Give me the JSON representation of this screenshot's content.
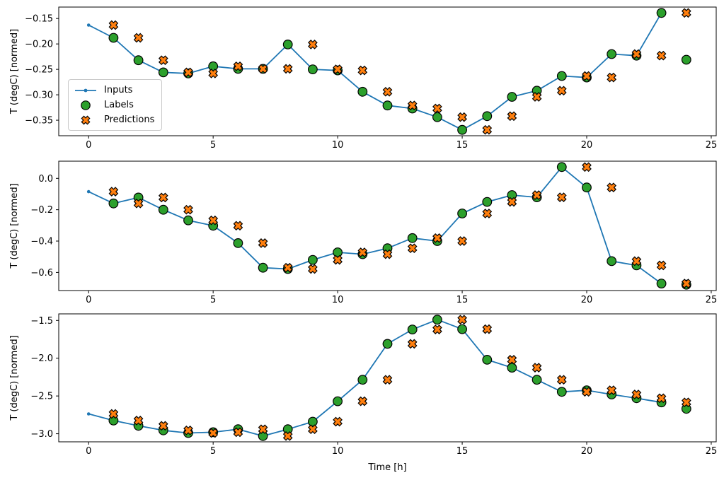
{
  "figure": {
    "background": "#ffffff",
    "legend": {
      "items": [
        {
          "label": "Inputs",
          "marker": "line-dot",
          "color": "#1f77b4"
        },
        {
          "label": "Labels",
          "marker": "circle",
          "color": "#2ca02c",
          "edge_color": "#000000"
        },
        {
          "label": "Predictions",
          "marker": "X",
          "color": "#ff7f0e",
          "edge_color": "#000000"
        }
      ]
    }
  },
  "chart_data": [
    {
      "type": "line",
      "name": "subplot-1",
      "title": "",
      "xlabel": "",
      "ylabel": "T (degC) [normed]",
      "grid": false,
      "legend_position": "upper-left-of-first-subplot",
      "xlim": [
        -1.2,
        25.2
      ],
      "ylim": [
        -0.3805,
        -0.1275
      ],
      "xticks": {
        "values": [
          0,
          5,
          10,
          15,
          20,
          25
        ],
        "labels": [
          "0",
          "5",
          "10",
          "15",
          "20",
          "25"
        ]
      },
      "yticks": {
        "values": [
          -0.15,
          -0.2,
          -0.25,
          -0.3,
          -0.35
        ],
        "labels": [
          "−0.15",
          "−0.20",
          "−0.25",
          "−0.30",
          "−0.35"
        ]
      },
      "series": [
        {
          "name": "Inputs",
          "type": "line",
          "marker": "dot",
          "color": "#1f77b4",
          "x": [
            0,
            1,
            2,
            3,
            4,
            5,
            6,
            7,
            8,
            9,
            10,
            11,
            12,
            13,
            14,
            15,
            16,
            17,
            18,
            19,
            20,
            21,
            22,
            23
          ],
          "y": [
            -0.163,
            -0.188,
            -0.232,
            -0.256,
            -0.258,
            -0.244,
            -0.249,
            -0.249,
            -0.201,
            -0.25,
            -0.252,
            -0.294,
            -0.321,
            -0.327,
            -0.344,
            -0.369,
            -0.342,
            -0.304,
            -0.292,
            -0.263,
            -0.266,
            -0.22,
            -0.223,
            -0.139
          ]
        },
        {
          "name": "Labels",
          "type": "scatter",
          "marker": "circle",
          "color": "#2ca02c",
          "edge_color": "#000000",
          "x": [
            1,
            2,
            3,
            4,
            5,
            6,
            7,
            8,
            9,
            10,
            11,
            12,
            13,
            14,
            15,
            16,
            17,
            18,
            19,
            20,
            21,
            22,
            23,
            24
          ],
          "y": [
            -0.188,
            -0.232,
            -0.256,
            -0.258,
            -0.244,
            -0.249,
            -0.249,
            -0.201,
            -0.25,
            -0.252,
            -0.294,
            -0.321,
            -0.327,
            -0.344,
            -0.369,
            -0.342,
            -0.304,
            -0.292,
            -0.263,
            -0.266,
            -0.22,
            -0.223,
            -0.139,
            -0.231
          ]
        },
        {
          "name": "Predictions",
          "type": "scatter",
          "marker": "X",
          "color": "#ff7f0e",
          "edge_color": "#000000",
          "x": [
            1,
            2,
            3,
            4,
            5,
            6,
            7,
            8,
            9,
            10,
            11,
            12,
            13,
            14,
            15,
            16,
            17,
            18,
            19,
            20,
            21,
            22,
            23,
            24
          ],
          "y": [
            -0.163,
            -0.188,
            -0.232,
            -0.256,
            -0.258,
            -0.244,
            -0.249,
            -0.249,
            -0.201,
            -0.25,
            -0.252,
            -0.294,
            -0.321,
            -0.327,
            -0.344,
            -0.369,
            -0.342,
            -0.304,
            -0.292,
            -0.263,
            -0.266,
            -0.22,
            -0.223,
            -0.139
          ]
        }
      ]
    },
    {
      "type": "line",
      "name": "subplot-2",
      "title": "",
      "xlabel": "",
      "ylabel": "T (degC) [normed]",
      "grid": false,
      "xlim": [
        -1.2,
        25.2
      ],
      "ylim": [
        -0.7155,
        0.1095
      ],
      "xticks": {
        "values": [
          0,
          5,
          10,
          15,
          20,
          25
        ],
        "labels": [
          "0",
          "5",
          "10",
          "15",
          "20",
          "25"
        ]
      },
      "yticks": {
        "values": [
          0.0,
          -0.2,
          -0.4,
          -0.6
        ],
        "labels": [
          "0.0",
          "−0.2",
          "−0.4",
          "−0.6"
        ]
      },
      "series": [
        {
          "name": "Inputs",
          "type": "line",
          "marker": "dot",
          "color": "#1f77b4",
          "x": [
            0,
            1,
            2,
            3,
            4,
            5,
            6,
            7,
            8,
            9,
            10,
            11,
            12,
            13,
            14,
            15,
            16,
            17,
            18,
            19,
            20,
            21,
            22,
            23
          ],
          "y": [
            -0.085,
            -0.16,
            -0.122,
            -0.2,
            -0.268,
            -0.302,
            -0.413,
            -0.57,
            -0.578,
            -0.52,
            -0.472,
            -0.484,
            -0.446,
            -0.381,
            -0.4,
            -0.224,
            -0.15,
            -0.107,
            -0.121,
            0.072,
            -0.058,
            -0.528,
            -0.555,
            -0.671
          ]
        },
        {
          "name": "Labels",
          "type": "scatter",
          "marker": "circle",
          "color": "#2ca02c",
          "edge_color": "#000000",
          "x": [
            1,
            2,
            3,
            4,
            5,
            6,
            7,
            8,
            9,
            10,
            11,
            12,
            13,
            14,
            15,
            16,
            17,
            18,
            19,
            20,
            21,
            22,
            23,
            24
          ],
          "y": [
            -0.16,
            -0.122,
            -0.2,
            -0.268,
            -0.302,
            -0.413,
            -0.57,
            -0.578,
            -0.52,
            -0.472,
            -0.484,
            -0.446,
            -0.381,
            -0.4,
            -0.224,
            -0.15,
            -0.107,
            -0.121,
            0.072,
            -0.058,
            -0.528,
            -0.555,
            -0.671,
            -0.678
          ]
        },
        {
          "name": "Predictions",
          "type": "scatter",
          "marker": "X",
          "color": "#ff7f0e",
          "edge_color": "#000000",
          "x": [
            1,
            2,
            3,
            4,
            5,
            6,
            7,
            8,
            9,
            10,
            11,
            12,
            13,
            14,
            15,
            16,
            17,
            18,
            19,
            20,
            21,
            22,
            23,
            24
          ],
          "y": [
            -0.085,
            -0.16,
            -0.122,
            -0.2,
            -0.268,
            -0.302,
            -0.413,
            -0.57,
            -0.578,
            -0.52,
            -0.472,
            -0.484,
            -0.446,
            -0.381,
            -0.4,
            -0.224,
            -0.15,
            -0.107,
            -0.121,
            0.072,
            -0.058,
            -0.528,
            -0.555,
            -0.671
          ]
        }
      ]
    },
    {
      "type": "line",
      "name": "subplot-3",
      "title": "",
      "xlabel": "Time [h]",
      "ylabel": "T (degC) [normed]",
      "grid": false,
      "xlim": [
        -1.2,
        25.2
      ],
      "ylim": [
        -3.107,
        -1.413
      ],
      "xticks": {
        "values": [
          0,
          5,
          10,
          15,
          20,
          25
        ],
        "labels": [
          "0",
          "5",
          "10",
          "15",
          "20",
          "25"
        ]
      },
      "yticks": {
        "values": [
          -1.5,
          -2.0,
          -2.5,
          -3.0
        ],
        "labels": [
          "−1.5",
          "−2.0",
          "−2.5",
          "−3.0"
        ]
      },
      "series": [
        {
          "name": "Inputs",
          "type": "line",
          "marker": "dot",
          "color": "#1f77b4",
          "x": [
            0,
            1,
            2,
            3,
            4,
            5,
            6,
            7,
            8,
            9,
            10,
            11,
            12,
            13,
            14,
            15,
            16,
            17,
            18,
            19,
            20,
            21,
            22,
            23
          ],
          "y": [
            -2.737,
            -2.825,
            -2.895,
            -2.955,
            -2.99,
            -2.98,
            -2.94,
            -3.03,
            -2.94,
            -2.84,
            -2.57,
            -2.285,
            -1.81,
            -1.62,
            -1.49,
            -1.615,
            -2.02,
            -2.125,
            -2.285,
            -2.445,
            -2.425,
            -2.48,
            -2.53,
            -2.585
          ]
        },
        {
          "name": "Labels",
          "type": "scatter",
          "marker": "circle",
          "color": "#2ca02c",
          "edge_color": "#000000",
          "x": [
            1,
            2,
            3,
            4,
            5,
            6,
            7,
            8,
            9,
            10,
            11,
            12,
            13,
            14,
            15,
            16,
            17,
            18,
            19,
            20,
            21,
            22,
            23,
            24
          ],
          "y": [
            -2.825,
            -2.895,
            -2.955,
            -2.99,
            -2.98,
            -2.94,
            -3.03,
            -2.94,
            -2.84,
            -2.57,
            -2.285,
            -1.81,
            -1.62,
            -1.49,
            -1.615,
            -2.02,
            -2.125,
            -2.285,
            -2.445,
            -2.425,
            -2.48,
            -2.53,
            -2.585,
            -2.67
          ]
        },
        {
          "name": "Predictions",
          "type": "scatter",
          "marker": "X",
          "color": "#ff7f0e",
          "edge_color": "#000000",
          "x": [
            1,
            2,
            3,
            4,
            5,
            6,
            7,
            8,
            9,
            10,
            11,
            12,
            13,
            14,
            15,
            16,
            17,
            18,
            19,
            20,
            21,
            22,
            23,
            24
          ],
          "y": [
            -2.737,
            -2.825,
            -2.895,
            -2.955,
            -2.99,
            -2.98,
            -2.94,
            -3.03,
            -2.94,
            -2.84,
            -2.57,
            -2.285,
            -1.81,
            -1.62,
            -1.49,
            -1.615,
            -2.02,
            -2.125,
            -2.285,
            -2.445,
            -2.425,
            -2.48,
            -2.53,
            -2.585
          ]
        }
      ]
    }
  ]
}
